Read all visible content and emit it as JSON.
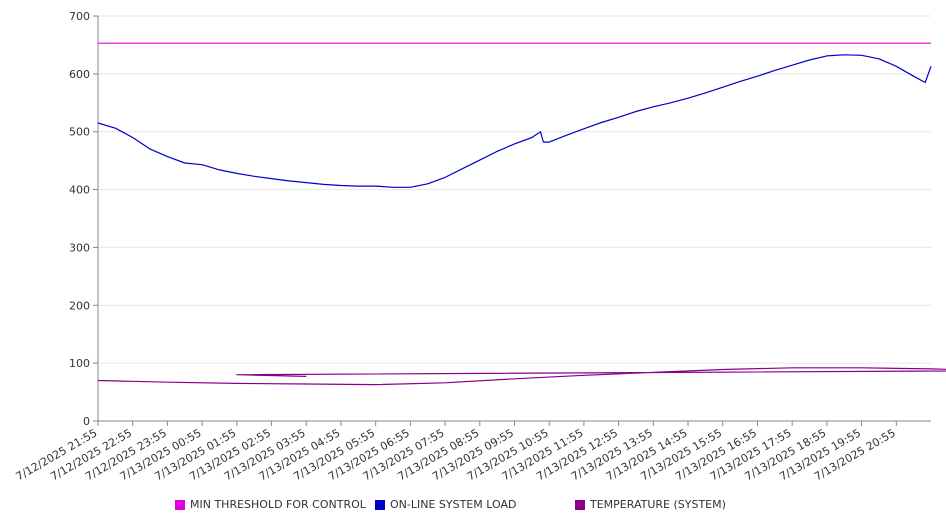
{
  "chart_data": {
    "type": "line",
    "title": "",
    "xlabel": "",
    "ylabel": "",
    "ylim": [
      0,
      700
    ],
    "yticks": [
      0,
      100,
      200,
      300,
      400,
      500,
      600,
      700
    ],
    "grid": true,
    "legend_position": "bottom",
    "x_start": "7/12/2025 21:55",
    "x_end": "7/13/2025 21:55",
    "x_tick_labels": [
      "7/12/2025 21:55",
      "7/12/2025 22:55",
      "7/12/2025 23:55",
      "7/13/2025 00:55",
      "7/13/2025 01:55",
      "7/13/2025 02:55",
      "7/13/2025 03:55",
      "7/13/2025 04:55",
      "7/13/2025 05:55",
      "7/13/2025 06:55",
      "7/13/2025 07:55",
      "7/13/2025 08:55",
      "7/13/2025 09:55",
      "7/13/2025 10:55",
      "7/13/2025 11:55",
      "7/13/2025 12:55",
      "7/13/2025 13:55",
      "7/13/2025 14:55",
      "7/13/2025 15:55",
      "7/13/2025 16:55",
      "7/13/2025 17:55",
      "7/13/2025 18:55",
      "7/13/2025 19:55",
      "7/13/2025 20:55"
    ],
    "series": [
      {
        "name": "MIN THRESHOLD FOR CONTROL",
        "color": "#e000e0",
        "points": [
          [
            "7/12/2025 21:55",
            653
          ],
          [
            "7/13/2025 21:55",
            653
          ]
        ]
      },
      {
        "name": "ON-LINE SYSTEM LOAD",
        "color": "#0000cc",
        "points": [
          [
            "7/12/2025 21:55",
            515
          ],
          [
            "7/12/2025 22:25",
            506
          ],
          [
            "7/12/2025 22:55",
            490
          ],
          [
            "7/12/2025 23:25",
            470
          ],
          [
            "7/12/2025 23:55",
            457
          ],
          [
            "7/13/2025 00:25",
            446
          ],
          [
            "7/13/2025 00:55",
            443
          ],
          [
            "7/13/2025 01:25",
            434
          ],
          [
            "7/13/2025 01:55",
            428
          ],
          [
            "7/13/2025 02:25",
            423
          ],
          [
            "7/13/2025 02:55",
            419
          ],
          [
            "7/13/2025 03:25",
            415
          ],
          [
            "7/13/2025 03:55",
            412
          ],
          [
            "7/13/2025 04:25",
            409
          ],
          [
            "7/13/2025 04:55",
            407
          ],
          [
            "7/13/2025 05:25",
            406
          ],
          [
            "7/13/2025 05:55",
            406
          ],
          [
            "7/13/2025 06:25",
            404
          ],
          [
            "7/13/2025 06:55",
            404
          ],
          [
            "7/13/2025 07:25",
            410
          ],
          [
            "7/13/2025 07:55",
            421
          ],
          [
            "7/13/2025 08:25",
            436
          ],
          [
            "7/13/2025 08:55",
            451
          ],
          [
            "7/13/2025 09:25",
            466
          ],
          [
            "7/13/2025 09:55",
            479
          ],
          [
            "7/13/2025 10:25",
            490
          ],
          [
            "7/13/2025 10:40",
            500
          ],
          [
            "7/13/2025 10:45",
            482
          ],
          [
            "7/13/2025 10:55",
            482
          ],
          [
            "7/13/2025 11:25",
            494
          ],
          [
            "7/13/2025 11:55",
            505
          ],
          [
            "7/13/2025 12:25",
            516
          ],
          [
            "7/13/2025 12:55",
            525
          ],
          [
            "7/13/2025 13:25",
            535
          ],
          [
            "7/13/2025 13:55",
            543
          ],
          [
            "7/13/2025 14:25",
            550
          ],
          [
            "7/13/2025 14:55",
            558
          ],
          [
            "7/13/2025 15:25",
            567
          ],
          [
            "7/13/2025 15:55",
            577
          ],
          [
            "7/13/2025 16:25",
            587
          ],
          [
            "7/13/2025 16:55",
            596
          ],
          [
            "7/13/2025 17:25",
            606
          ],
          [
            "7/13/2025 17:55",
            615
          ],
          [
            "7/13/2025 18:25",
            624
          ],
          [
            "7/13/2025 18:55",
            631
          ],
          [
            "7/13/2025 19:25",
            633
          ],
          [
            "7/13/2025 19:55",
            632
          ],
          [
            "7/13/2025 20:25",
            626
          ],
          [
            "7/13/2025 20:55",
            613
          ],
          [
            "7/13/2025 21:25",
            596
          ],
          [
            "7/13/2025 21:45",
            585
          ],
          [
            "7/13/2025 21:55",
            613
          ]
        ]
      },
      {
        "name": "TEMPERATURE (SYSTEM)",
        "color": "#880088",
        "points": [
          [
            "7/12/2025 21:55",
            70
          ],
          [
            "7/12/2025 23:55",
            67
          ],
          [
            "7/13/2025 01:55",
            65
          ],
          [
            "7/13/2025 03:55",
            64
          ],
          [
            "7/13/2025 05:55",
            63
          ],
          [
            "7/13/2025 07:55",
            66
          ],
          [
            "7/13/2025 09:55",
            73
          ],
          [
            "7/13/2025 11:55",
            79
          ],
          [
            "7/13/2025 13:55",
            84
          ],
          [
            "7/13/2025 15:55",
            89
          ],
          [
            "7/13/2025 17:55",
            92
          ],
          [
            "7/13/2025 19:55",
            92
          ],
          [
            "7/13/2025 21:55",
            90
          ],
          [
            "7/13/2025 23:55",
            87
          ],
          [
            "7/13/2025 01:55",
            80
          ],
          [
            "7/13/2025 03:55",
            77
          ]
        ]
      }
    ]
  }
}
